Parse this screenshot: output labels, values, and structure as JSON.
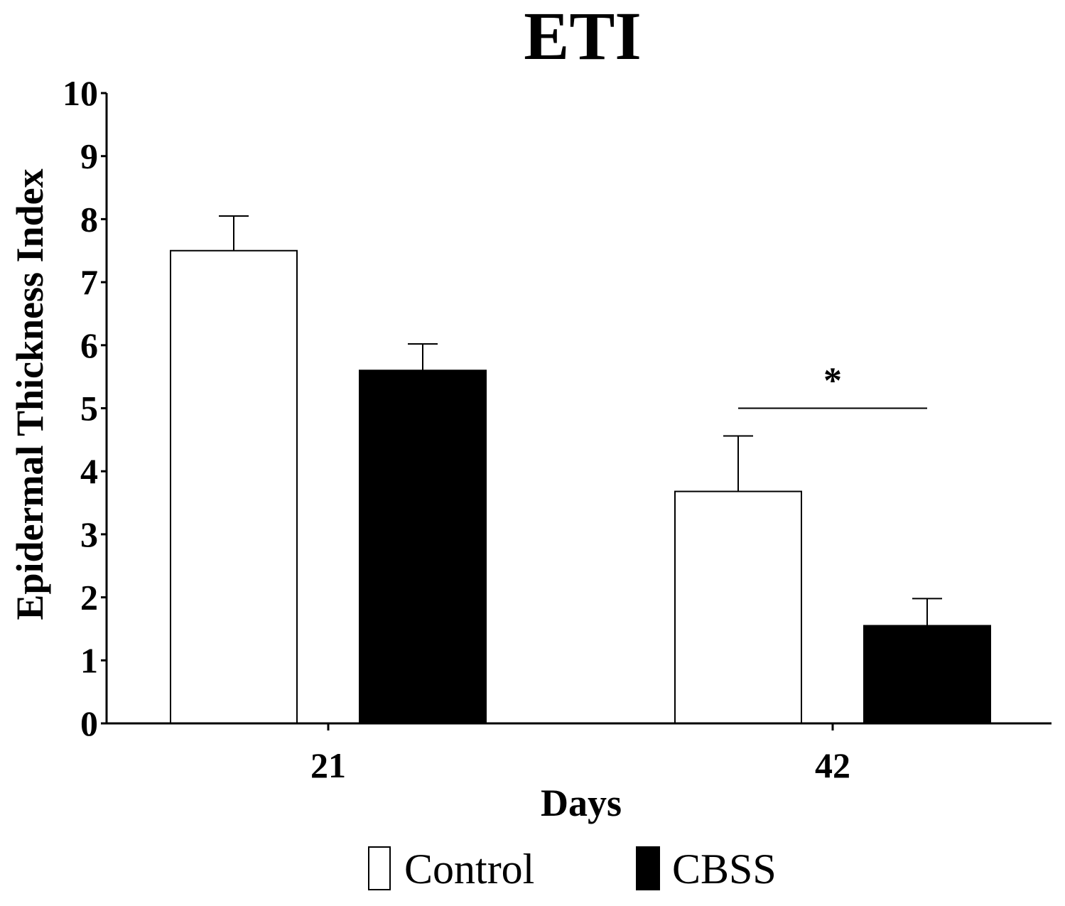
{
  "chart_data": {
    "type": "bar",
    "title": "ETI",
    "xlabel": "Days",
    "ylabel": "Epidermal Thickness Index",
    "categories": [
      "21",
      "42"
    ],
    "ylim": [
      0,
      10
    ],
    "yticks": [
      "0",
      "1",
      "2",
      "3",
      "4",
      "5",
      "6",
      "7",
      "8",
      "9",
      "10"
    ],
    "series": [
      {
        "name": "Control",
        "values": [
          7.5,
          3.68
        ],
        "errors": [
          0.55,
          0.88
        ],
        "fill": "#ffffff"
      },
      {
        "name": "CBSS",
        "values": [
          5.6,
          1.55
        ],
        "errors": [
          0.42,
          0.43
        ],
        "fill": "#000000"
      }
    ],
    "annotation": {
      "text": "*",
      "category": "42",
      "y": 5.0
    },
    "legend": "bottom",
    "grid": false
  }
}
